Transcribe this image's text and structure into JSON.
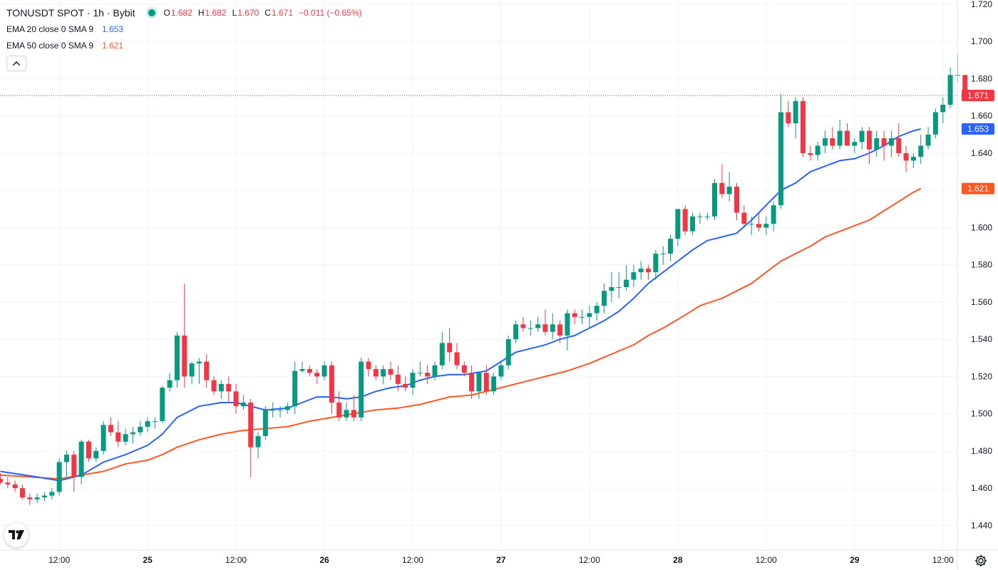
{
  "legend": {
    "symbol": "TONUSDT SPOT · 1h · Bybit",
    "open_label": "O",
    "open": "1.682",
    "high_label": "H",
    "high": "1.682",
    "low_label": "L",
    "low": "1.670",
    "close_label": "C",
    "close": "1.671",
    "change": "−0.011 (−0.65%)",
    "ema20_label": "EMA 20 close 0 SMA 9",
    "ema20_value": "1.653",
    "ema50_label": "EMA 50 close 0 SMA 9",
    "ema50_value": "1.621"
  },
  "badges": {
    "last_price": "1.671",
    "ema20": "1.653",
    "ema50": "1.621"
  },
  "colors": {
    "up": "#089981",
    "down": "#f23645",
    "ema20": "#2962ff",
    "ema50": "#ff5722",
    "grid": "#f0f3fa"
  },
  "icons": {
    "collapse": "chevron-up-icon",
    "logo": "tradingview-logo-icon",
    "settings": "gear-icon"
  },
  "chart_data": {
    "type": "candlestick",
    "title": "TONUSDT SPOT · 1h · Bybit",
    "interval": "1h",
    "ylim": [
      1.43,
      1.72
    ],
    "y_ticks": [
      "1.720",
      "1.700",
      "1.680",
      "1.660",
      "1.640",
      "1.620",
      "1.600",
      "1.580",
      "1.560",
      "1.540",
      "1.520",
      "1.500",
      "1.480",
      "1.460",
      "1.440"
    ],
    "x_ticks": [
      {
        "bar": 8,
        "label": "12:00",
        "bold": false
      },
      {
        "bar": 20,
        "label": "25",
        "bold": true
      },
      {
        "bar": 32,
        "label": "12:00",
        "bold": false
      },
      {
        "bar": 44,
        "label": "26",
        "bold": true
      },
      {
        "bar": 56,
        "label": "12:00",
        "bold": false
      },
      {
        "bar": 68,
        "label": "27",
        "bold": true
      },
      {
        "bar": 80,
        "label": "12:00",
        "bold": false
      },
      {
        "bar": 92,
        "label": "28",
        "bold": true
      },
      {
        "bar": 104,
        "label": "12:00",
        "bold": false
      },
      {
        "bar": 116,
        "label": "29",
        "bold": true
      },
      {
        "bar": 128,
        "label": "12:00",
        "bold": false
      }
    ],
    "candles": [
      [
        1.465,
        1.468,
        1.462,
        1.463
      ],
      [
        1.463,
        1.466,
        1.46,
        1.462
      ],
      [
        1.462,
        1.464,
        1.458,
        1.46
      ],
      [
        1.46,
        1.462,
        1.454,
        1.455
      ],
      [
        1.455,
        1.457,
        1.451,
        1.454
      ],
      [
        1.454,
        1.457,
        1.452,
        1.455
      ],
      [
        1.455,
        1.458,
        1.453,
        1.456
      ],
      [
        1.456,
        1.46,
        1.454,
        1.458
      ],
      [
        1.458,
        1.476,
        1.456,
        1.474
      ],
      [
        1.474,
        1.48,
        1.466,
        1.478
      ],
      [
        1.478,
        1.48,
        1.458,
        1.466
      ],
      [
        1.466,
        1.486,
        1.462,
        1.485
      ],
      [
        1.485,
        1.486,
        1.474,
        1.476
      ],
      [
        1.476,
        1.482,
        1.474,
        1.48
      ],
      [
        1.48,
        1.496,
        1.478,
        1.494
      ],
      [
        1.494,
        1.498,
        1.488,
        1.49
      ],
      [
        1.49,
        1.496,
        1.482,
        1.485
      ],
      [
        1.485,
        1.492,
        1.483,
        1.489
      ],
      [
        1.489,
        1.493,
        1.484,
        1.49
      ],
      [
        1.49,
        1.496,
        1.488,
        1.493
      ],
      [
        1.493,
        1.498,
        1.49,
        1.496
      ],
      [
        1.496,
        1.498,
        1.492,
        1.496
      ],
      [
        1.496,
        1.515,
        1.495,
        1.514
      ],
      [
        1.514,
        1.522,
        1.512,
        1.518
      ],
      [
        1.518,
        1.544,
        1.514,
        1.542
      ],
      [
        1.542,
        1.57,
        1.514,
        1.52
      ],
      [
        1.52,
        1.528,
        1.516,
        1.527
      ],
      [
        1.527,
        1.53,
        1.516,
        1.528
      ],
      [
        1.528,
        1.532,
        1.514,
        1.518
      ],
      [
        1.518,
        1.52,
        1.51,
        1.512
      ],
      [
        1.512,
        1.518,
        1.508,
        1.516
      ],
      [
        1.516,
        1.52,
        1.506,
        1.512
      ],
      [
        1.512,
        1.516,
        1.5,
        1.504
      ],
      [
        1.504,
        1.51,
        1.502,
        1.506
      ],
      [
        1.506,
        1.508,
        1.466,
        1.482
      ],
      [
        1.482,
        1.49,
        1.476,
        1.488
      ],
      [
        1.488,
        1.504,
        1.486,
        1.502
      ],
      [
        1.502,
        1.506,
        1.498,
        1.502
      ],
      [
        1.502,
        1.504,
        1.498,
        1.502
      ],
      [
        1.502,
        1.506,
        1.5,
        1.504
      ],
      [
        1.504,
        1.528,
        1.5,
        1.523
      ],
      [
        1.523,
        1.528,
        1.522,
        1.524
      ],
      [
        1.524,
        1.526,
        1.52,
        1.522
      ],
      [
        1.522,
        1.524,
        1.516,
        1.52
      ],
      [
        1.52,
        1.528,
        1.518,
        1.526
      ],
      [
        1.526,
        1.528,
        1.5,
        1.506
      ],
      [
        1.506,
        1.512,
        1.496,
        1.498
      ],
      [
        1.498,
        1.506,
        1.496,
        1.502
      ],
      [
        1.502,
        1.51,
        1.496,
        1.498
      ],
      [
        1.498,
        1.53,
        1.496,
        1.528
      ],
      [
        1.528,
        1.53,
        1.52,
        1.524
      ],
      [
        1.524,
        1.526,
        1.518,
        1.52
      ],
      [
        1.52,
        1.526,
        1.516,
        1.524
      ],
      [
        1.524,
        1.528,
        1.518,
        1.521
      ],
      [
        1.521,
        1.526,
        1.512,
        1.516
      ],
      [
        1.516,
        1.52,
        1.512,
        1.514
      ],
      [
        1.514,
        1.524,
        1.51,
        1.522
      ],
      [
        1.522,
        1.528,
        1.52,
        1.522
      ],
      [
        1.522,
        1.526,
        1.516,
        1.52
      ],
      [
        1.52,
        1.528,
        1.518,
        1.526
      ],
      [
        1.526,
        1.544,
        1.524,
        1.538
      ],
      [
        1.538,
        1.546,
        1.528,
        1.533
      ],
      [
        1.533,
        1.538,
        1.524,
        1.526
      ],
      [
        1.526,
        1.528,
        1.52,
        1.522
      ],
      [
        1.522,
        1.526,
        1.508,
        1.512
      ],
      [
        1.512,
        1.52,
        1.508,
        1.522
      ],
      [
        1.522,
        1.526,
        1.51,
        1.512
      ],
      [
        1.512,
        1.522,
        1.51,
        1.52
      ],
      [
        1.52,
        1.528,
        1.518,
        1.526
      ],
      [
        1.526,
        1.542,
        1.524,
        1.54
      ],
      [
        1.54,
        1.55,
        1.538,
        1.548
      ],
      [
        1.548,
        1.552,
        1.544,
        1.546
      ],
      [
        1.546,
        1.55,
        1.542,
        1.546
      ],
      [
        1.546,
        1.552,
        1.544,
        1.548
      ],
      [
        1.548,
        1.556,
        1.542,
        1.544
      ],
      [
        1.544,
        1.554,
        1.54,
        1.548
      ],
      [
        1.548,
        1.55,
        1.538,
        1.542
      ],
      [
        1.542,
        1.556,
        1.534,
        1.554
      ],
      [
        1.554,
        1.556,
        1.548,
        1.552
      ],
      [
        1.552,
        1.556,
        1.548,
        1.552
      ],
      [
        1.552,
        1.558,
        1.546,
        1.554
      ],
      [
        1.554,
        1.56,
        1.55,
        1.558
      ],
      [
        1.558,
        1.57,
        1.554,
        1.566
      ],
      [
        1.566,
        1.576,
        1.56,
        1.568
      ],
      [
        1.568,
        1.576,
        1.562,
        1.568
      ],
      [
        1.568,
        1.58,
        1.566,
        1.572
      ],
      [
        1.572,
        1.58,
        1.568,
        1.576
      ],
      [
        1.576,
        1.582,
        1.572,
        1.578
      ],
      [
        1.578,
        1.58,
        1.572,
        1.576
      ],
      [
        1.576,
        1.588,
        1.572,
        1.586
      ],
      [
        1.586,
        1.59,
        1.58,
        1.586
      ],
      [
        1.586,
        1.596,
        1.582,
        1.594
      ],
      [
        1.594,
        1.61,
        1.59,
        1.61
      ],
      [
        1.61,
        1.612,
        1.596,
        1.598
      ],
      [
        1.598,
        1.608,
        1.596,
        1.606
      ],
      [
        1.606,
        1.608,
        1.602,
        1.606
      ],
      [
        1.606,
        1.608,
        1.604,
        1.606
      ],
      [
        1.606,
        1.626,
        1.604,
        1.624
      ],
      [
        1.624,
        1.634,
        1.616,
        1.618
      ],
      [
        1.618,
        1.63,
        1.614,
        1.622
      ],
      [
        1.622,
        1.624,
        1.604,
        1.608
      ],
      [
        1.608,
        1.612,
        1.6,
        1.602
      ],
      [
        1.602,
        1.606,
        1.596,
        1.602
      ],
      [
        1.602,
        1.608,
        1.598,
        1.6
      ],
      [
        1.6,
        1.606,
        1.596,
        1.602
      ],
      [
        1.602,
        1.614,
        1.598,
        1.612
      ],
      [
        1.612,
        1.672,
        1.61,
        1.662
      ],
      [
        1.662,
        1.668,
        1.654,
        1.656
      ],
      [
        1.656,
        1.67,
        1.648,
        1.668
      ],
      [
        1.668,
        1.67,
        1.638,
        1.64
      ],
      [
        1.64,
        1.644,
        1.636,
        1.639
      ],
      [
        1.639,
        1.646,
        1.636,
        1.644
      ],
      [
        1.644,
        1.652,
        1.64,
        1.648
      ],
      [
        1.648,
        1.654,
        1.642,
        1.644
      ],
      [
        1.644,
        1.658,
        1.642,
        1.652
      ],
      [
        1.652,
        1.656,
        1.644,
        1.644
      ],
      [
        1.644,
        1.648,
        1.64,
        1.646
      ],
      [
        1.646,
        1.654,
        1.642,
        1.652
      ],
      [
        1.652,
        1.654,
        1.634,
        1.642
      ],
      [
        1.642,
        1.652,
        1.638,
        1.648
      ],
      [
        1.648,
        1.652,
        1.636,
        1.644
      ],
      [
        1.644,
        1.652,
        1.638,
        1.648
      ],
      [
        1.648,
        1.656,
        1.638,
        1.64
      ],
      [
        1.64,
        1.644,
        1.63,
        1.636
      ],
      [
        1.636,
        1.64,
        1.632,
        1.638
      ],
      [
        1.638,
        1.65,
        1.634,
        1.644
      ],
      [
        1.644,
        1.654,
        1.642,
        1.65
      ],
      [
        1.65,
        1.664,
        1.648,
        1.662
      ],
      [
        1.662,
        1.67,
        1.656,
        1.666
      ],
      [
        1.666,
        1.686,
        1.664,
        1.682
      ],
      [
        1.682,
        1.693,
        1.678,
        1.682
      ],
      [
        1.682,
        1.682,
        1.67,
        1.671
      ]
    ],
    "ema20": [
      [
        0,
        1.469
      ],
      [
        5,
        1.466
      ],
      [
        8,
        1.464
      ],
      [
        11,
        1.467
      ],
      [
        14,
        1.474
      ],
      [
        17,
        1.478
      ],
      [
        20,
        1.483
      ],
      [
        22,
        1.489
      ],
      [
        24,
        1.498
      ],
      [
        27,
        1.504
      ],
      [
        30,
        1.506
      ],
      [
        32,
        1.506
      ],
      [
        34,
        1.504
      ],
      [
        36,
        1.502
      ],
      [
        39,
        1.503
      ],
      [
        41,
        1.506
      ],
      [
        43,
        1.509
      ],
      [
        45,
        1.509
      ],
      [
        47,
        1.508
      ],
      [
        49,
        1.509
      ],
      [
        51,
        1.512
      ],
      [
        53,
        1.514
      ],
      [
        55,
        1.515
      ],
      [
        57,
        1.518
      ],
      [
        59,
        1.52
      ],
      [
        61,
        1.521
      ],
      [
        63,
        1.521
      ],
      [
        66,
        1.523
      ],
      [
        68,
        1.528
      ],
      [
        70,
        1.533
      ],
      [
        72,
        1.535
      ],
      [
        74,
        1.537
      ],
      [
        76,
        1.54
      ],
      [
        78,
        1.542
      ],
      [
        80,
        1.546
      ],
      [
        82,
        1.55
      ],
      [
        84,
        1.555
      ],
      [
        86,
        1.562
      ],
      [
        88,
        1.57
      ],
      [
        90,
        1.576
      ],
      [
        92,
        1.582
      ],
      [
        94,
        1.588
      ],
      [
        96,
        1.593
      ],
      [
        98,
        1.595
      ],
      [
        100,
        1.597
      ],
      [
        102,
        1.604
      ],
      [
        104,
        1.612
      ],
      [
        106,
        1.62
      ],
      [
        108,
        1.624
      ],
      [
        110,
        1.63
      ],
      [
        112,
        1.633
      ],
      [
        114,
        1.636
      ],
      [
        116,
        1.637
      ],
      [
        118,
        1.64
      ],
      [
        120,
        1.644
      ],
      [
        122,
        1.649
      ],
      [
        124,
        1.652
      ],
      [
        125,
        1.653
      ]
    ],
    "ema50": [
      [
        0,
        1.467
      ],
      [
        4,
        1.466
      ],
      [
        8,
        1.465
      ],
      [
        11,
        1.467
      ],
      [
        14,
        1.469
      ],
      [
        17,
        1.473
      ],
      [
        20,
        1.475
      ],
      [
        22,
        1.478
      ],
      [
        24,
        1.482
      ],
      [
        27,
        1.486
      ],
      [
        30,
        1.489
      ],
      [
        33,
        1.491
      ],
      [
        36,
        1.492
      ],
      [
        39,
        1.493
      ],
      [
        42,
        1.496
      ],
      [
        45,
        1.498
      ],
      [
        48,
        1.5
      ],
      [
        51,
        1.502
      ],
      [
        54,
        1.503
      ],
      [
        57,
        1.505
      ],
      [
        59,
        1.507
      ],
      [
        61,
        1.509
      ],
      [
        64,
        1.51
      ],
      [
        66,
        1.512
      ],
      [
        68,
        1.514
      ],
      [
        71,
        1.517
      ],
      [
        74,
        1.52
      ],
      [
        77,
        1.523
      ],
      [
        80,
        1.527
      ],
      [
        83,
        1.532
      ],
      [
        86,
        1.537
      ],
      [
        88,
        1.542
      ],
      [
        90,
        1.546
      ],
      [
        93,
        1.553
      ],
      [
        95,
        1.558
      ],
      [
        98,
        1.562
      ],
      [
        100,
        1.566
      ],
      [
        102,
        1.57
      ],
      [
        104,
        1.576
      ],
      [
        106,
        1.582
      ],
      [
        108,
        1.586
      ],
      [
        110,
        1.59
      ],
      [
        112,
        1.595
      ],
      [
        114,
        1.598
      ],
      [
        116,
        1.601
      ],
      [
        118,
        1.604
      ],
      [
        120,
        1.609
      ],
      [
        122,
        1.614
      ],
      [
        124,
        1.619
      ],
      [
        125,
        1.621
      ]
    ],
    "last_price": 1.671
  }
}
